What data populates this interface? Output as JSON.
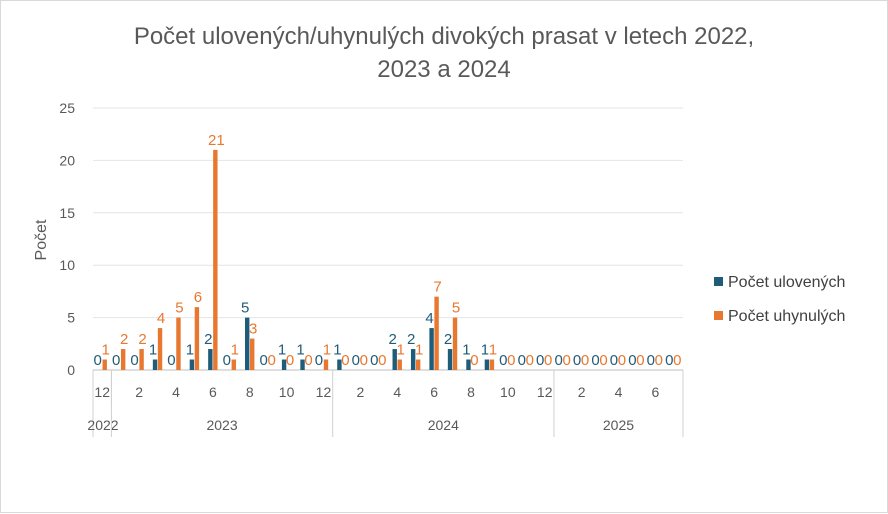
{
  "chart_data": {
    "type": "bar",
    "title": "Počet ulovených/uhynulých divokých prasat v letech 2022, 2023 a 2024",
    "title_lines": [
      "Počet ulovených/uhynulých divokých prasat v letech 2022,",
      "2023 a 2024"
    ],
    "ylabel": "Počet",
    "ylim": [
      0,
      25
    ],
    "yticks": [
      0,
      5,
      10,
      15,
      20,
      25
    ],
    "grid": true,
    "legend_position": "right",
    "categories": [
      "12",
      "1",
      "2",
      "3",
      "4",
      "5",
      "6",
      "7",
      "8",
      "9",
      "10",
      "11",
      "12",
      "1",
      "2",
      "3",
      "4",
      "5",
      "6",
      "7",
      "8",
      "9",
      "10",
      "11",
      "12",
      "1",
      "2",
      "3",
      "4",
      "5",
      "6",
      "7"
    ],
    "category_labels": [
      "12",
      "",
      "2",
      "",
      "4",
      "",
      "6",
      "",
      "8",
      "",
      "10",
      "",
      "12",
      "",
      "2",
      "",
      "4",
      "",
      "6",
      "",
      "8",
      "",
      "10",
      "",
      "12",
      "",
      "2",
      "",
      "4",
      "",
      "6",
      ""
    ],
    "year_groups": [
      {
        "label": "2022",
        "start": 0,
        "count": 1
      },
      {
        "label": "2023",
        "start": 1,
        "count": 12
      },
      {
        "label": "2024",
        "start": 13,
        "count": 12
      },
      {
        "label": "2025",
        "start": 25,
        "count": 7
      }
    ],
    "series": [
      {
        "name": "Počet ulovených",
        "color": "#1f5c7a",
        "values": [
          0,
          0,
          0,
          1,
          0,
          1,
          2,
          0,
          5,
          0,
          1,
          1,
          0,
          1,
          0,
          0,
          2,
          2,
          4,
          2,
          1,
          1,
          0,
          0,
          0,
          0,
          0,
          0,
          0,
          0,
          0,
          0
        ]
      },
      {
        "name": "Počet uhynulých",
        "color": "#e8782f",
        "values": [
          1,
          2,
          2,
          4,
          5,
          6,
          21,
          1,
          3,
          0,
          0,
          0,
          1,
          0,
          0,
          0,
          1,
          1,
          7,
          5,
          0,
          1,
          0,
          0,
          0,
          0,
          0,
          0,
          0,
          0,
          0,
          0
        ]
      }
    ]
  }
}
